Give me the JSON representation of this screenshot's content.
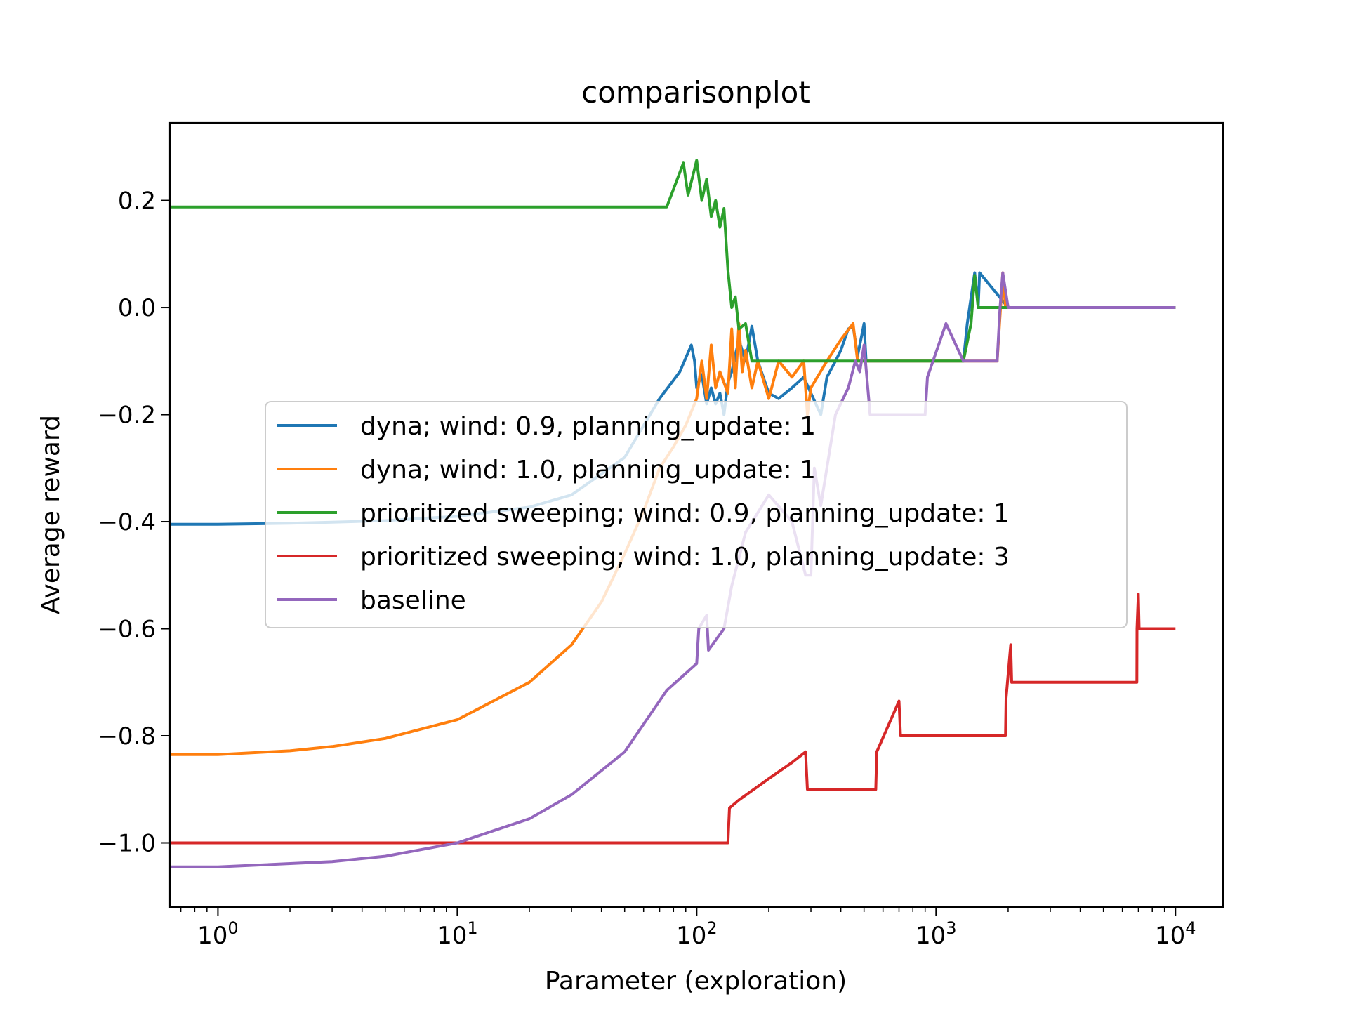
{
  "chart_data": {
    "type": "line",
    "title": "comparisonplot",
    "xlabel": "Parameter (exploration)",
    "ylabel": "Average reward",
    "xscale": "log",
    "xlim": [
      0.63,
      15800
    ],
    "ylim": [
      -1.12,
      0.345
    ],
    "x_ticks": [
      {
        "value": 1,
        "base": "10",
        "exp": "0"
      },
      {
        "value": 10,
        "base": "10",
        "exp": "1"
      },
      {
        "value": 100,
        "base": "10",
        "exp": "2"
      },
      {
        "value": 1000,
        "base": "10",
        "exp": "3"
      },
      {
        "value": 10000,
        "base": "10",
        "exp": "4"
      }
    ],
    "y_ticks": [
      {
        "value": 0.2,
        "label": "0.2"
      },
      {
        "value": 0.0,
        "label": "0.0"
      },
      {
        "value": -0.2,
        "label": "−0.2"
      },
      {
        "value": -0.4,
        "label": "−0.4"
      },
      {
        "value": -0.6,
        "label": "−0.6"
      },
      {
        "value": -0.8,
        "label": "−0.8"
      },
      {
        "value": -1.0,
        "label": "−1.0"
      }
    ],
    "grid": false,
    "legend_position": "center",
    "series": [
      {
        "name": "dyna; wind: 0.9, planning_update: 1",
        "color": "#1f77b4",
        "x": [
          0.63,
          1,
          2,
          3,
          5,
          10,
          20,
          30,
          50,
          70,
          85,
          95,
          98,
          100,
          105,
          110,
          115,
          120,
          125,
          130,
          135,
          140,
          150,
          160,
          170,
          180,
          200,
          220,
          250,
          280,
          300,
          330,
          350,
          380,
          400,
          430,
          450,
          470,
          490,
          500,
          510,
          520,
          550,
          700,
          900,
          1000,
          1200,
          1300,
          1350,
          1450,
          1500,
          1520,
          2000,
          10000
        ],
        "y": [
          -0.405,
          -0.405,
          -0.403,
          -0.401,
          -0.398,
          -0.39,
          -0.373,
          -0.35,
          -0.28,
          -0.17,
          -0.12,
          -0.07,
          -0.1,
          -0.15,
          -0.125,
          -0.18,
          -0.15,
          -0.18,
          -0.16,
          -0.2,
          -0.14,
          -0.12,
          -0.06,
          -0.1,
          -0.035,
          -0.1,
          -0.16,
          -0.17,
          -0.15,
          -0.13,
          -0.16,
          -0.2,
          -0.13,
          -0.1,
          -0.08,
          -0.04,
          -0.035,
          -0.09,
          -0.05,
          -0.03,
          -0.1,
          -0.1,
          -0.1,
          -0.1,
          -0.1,
          -0.1,
          -0.1,
          -0.1,
          -0.03,
          0.065,
          0.0,
          0.065,
          0.0,
          0.0
        ]
      },
      {
        "name": "dyna; wind: 1.0, planning_update: 1",
        "color": "#ff7f0e",
        "x": [
          0.63,
          1,
          2,
          3,
          5,
          10,
          20,
          30,
          40,
          50,
          60,
          70,
          80,
          90,
          100,
          105,
          110,
          115,
          120,
          125,
          135,
          140,
          145,
          150,
          155,
          160,
          170,
          180,
          200,
          220,
          250,
          280,
          290,
          300,
          350,
          400,
          450,
          470,
          500,
          550,
          900,
          1000,
          1800,
          1900,
          1950,
          2000,
          10000
        ],
        "y": [
          -0.835,
          -0.835,
          -0.828,
          -0.82,
          -0.805,
          -0.77,
          -0.7,
          -0.63,
          -0.55,
          -0.46,
          -0.38,
          -0.3,
          -0.26,
          -0.22,
          -0.17,
          -0.1,
          -0.17,
          -0.07,
          -0.15,
          -0.12,
          -0.16,
          -0.04,
          -0.15,
          -0.03,
          -0.12,
          -0.08,
          -0.15,
          -0.1,
          -0.17,
          -0.1,
          -0.13,
          -0.1,
          -0.2,
          -0.15,
          -0.1,
          -0.06,
          -0.03,
          -0.1,
          -0.1,
          -0.1,
          -0.1,
          -0.1,
          -0.1,
          0.065,
          0.0,
          0.0,
          0.0
        ]
      },
      {
        "name": "prioritized sweeping; wind: 0.9, planning_update: 1",
        "color": "#2ca02c",
        "x": [
          0.63,
          75,
          88,
          92,
          100,
          105,
          110,
          115,
          120,
          125,
          130,
          135,
          140,
          145,
          150,
          160,
          170,
          200,
          400,
          1000,
          1300,
          1400,
          1450,
          1500,
          10000
        ],
        "y": [
          0.188,
          0.188,
          0.27,
          0.21,
          0.275,
          0.2,
          0.24,
          0.17,
          0.2,
          0.15,
          0.185,
          0.07,
          0.0,
          0.02,
          -0.04,
          -0.03,
          -0.1,
          -0.1,
          -0.1,
          -0.1,
          -0.1,
          -0.03,
          0.06,
          0.0,
          0.0
        ]
      },
      {
        "name": "prioritized sweeping; wind: 1.0, planning_update: 3",
        "color": "#d62728",
        "x": [
          0.63,
          100,
          135,
          137,
          150,
          200,
          250,
          285,
          290,
          500,
          560,
          565,
          700,
          710,
          1000,
          1950,
          1960,
          2050,
          2070,
          5000,
          6900,
          6910,
          7000,
          7050,
          10000
        ],
        "y": [
          -1.0,
          -1.0,
          -1.0,
          -0.935,
          -0.92,
          -0.88,
          -0.85,
          -0.83,
          -0.9,
          -0.9,
          -0.9,
          -0.83,
          -0.735,
          -0.8,
          -0.8,
          -0.8,
          -0.73,
          -0.63,
          -0.7,
          -0.7,
          -0.7,
          -0.6,
          -0.535,
          -0.6,
          -0.6
        ]
      },
      {
        "name": "baseline",
        "color": "#9467bd",
        "x": [
          0.63,
          1,
          3,
          5,
          10,
          20,
          30,
          50,
          75,
          100,
          102,
          105,
          110,
          112,
          130,
          140,
          160,
          200,
          250,
          285,
          300,
          310,
          330,
          380,
          430,
          460,
          480,
          500,
          530,
          600,
          700,
          900,
          920,
          1100,
          1300,
          1350,
          1400,
          1800,
          1850,
          1900,
          2000,
          10000
        ],
        "y": [
          -1.045,
          -1.045,
          -1.035,
          -1.025,
          -1.0,
          -0.955,
          -0.91,
          -0.83,
          -0.715,
          -0.665,
          -0.6,
          -0.59,
          -0.575,
          -0.64,
          -0.6,
          -0.52,
          -0.42,
          -0.35,
          -0.4,
          -0.5,
          -0.5,
          -0.3,
          -0.37,
          -0.2,
          -0.15,
          -0.1,
          -0.12,
          -0.07,
          -0.2,
          -0.2,
          -0.2,
          -0.2,
          -0.13,
          -0.03,
          -0.1,
          -0.1,
          -0.1,
          -0.1,
          0.0,
          0.065,
          0.0,
          0.0
        ]
      }
    ]
  }
}
